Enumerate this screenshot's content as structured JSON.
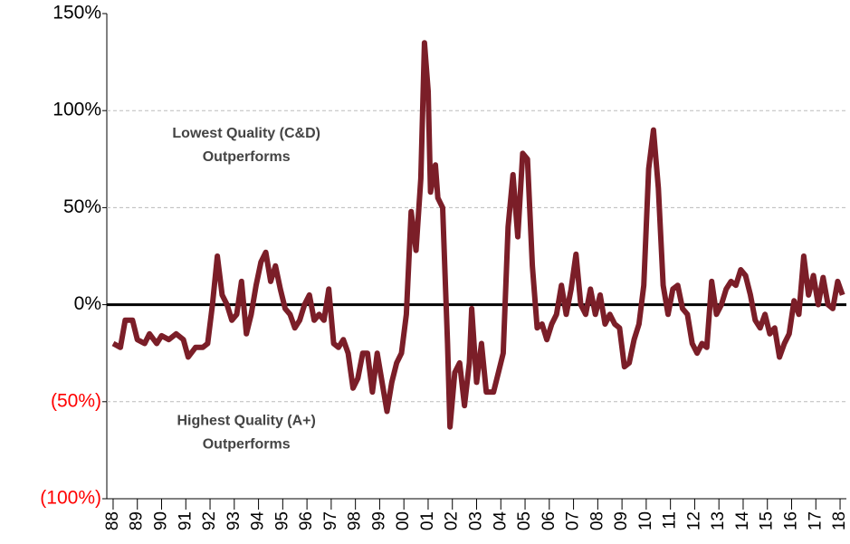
{
  "chart_data": {
    "type": "line",
    "annotations": [
      {
        "text": [
          "Lowest Quality (C&D)",
          "Outperforms"
        ],
        "at": [
          1993.5,
          88
        ]
      },
      {
        "text": [
          "Highest Quality (A+)",
          "Outperforms"
        ],
        "at": [
          1993.5,
          -60
        ]
      }
    ],
    "xlim": [
      1987.74,
      2018.26
    ],
    "xticks": [
      {
        "value": 1988,
        "label": "88"
      },
      {
        "value": 1989,
        "label": "89"
      },
      {
        "value": 1990,
        "label": "90"
      },
      {
        "value": 1991,
        "label": "91"
      },
      {
        "value": 1992,
        "label": "92"
      },
      {
        "value": 1993,
        "label": "93"
      },
      {
        "value": 1994,
        "label": "94"
      },
      {
        "value": 1995,
        "label": "95"
      },
      {
        "value": 1996,
        "label": "96"
      },
      {
        "value": 1997,
        "label": "97"
      },
      {
        "value": 1998,
        "label": "98"
      },
      {
        "value": 1999,
        "label": "99"
      },
      {
        "value": 2000,
        "label": "00"
      },
      {
        "value": 2001,
        "label": "01"
      },
      {
        "value": 2002,
        "label": "02"
      },
      {
        "value": 2003,
        "label": "03"
      },
      {
        "value": 2004,
        "label": "04"
      },
      {
        "value": 2005,
        "label": "05"
      },
      {
        "value": 2006,
        "label": "06"
      },
      {
        "value": 2007,
        "label": "07"
      },
      {
        "value": 2008,
        "label": "08"
      },
      {
        "value": 2009,
        "label": "09"
      },
      {
        "value": 2010,
        "label": "10"
      },
      {
        "value": 2011,
        "label": "11"
      },
      {
        "value": 2012,
        "label": "12"
      },
      {
        "value": 2013,
        "label": "13"
      },
      {
        "value": 2014,
        "label": "14"
      },
      {
        "value": 2015,
        "label": "15"
      },
      {
        "value": 2016,
        "label": "16"
      },
      {
        "value": 2017,
        "label": "17"
      },
      {
        "value": 2018,
        "label": "18"
      }
    ],
    "ylim": [
      -100,
      150
    ],
    "yticks": [
      {
        "value": -100,
        "label": "(100%)"
      },
      {
        "value": -50,
        "label": "(50%)"
      },
      {
        "value": 0,
        "label": "0%"
      },
      {
        "value": 50,
        "label": "50%"
      },
      {
        "value": 100,
        "label": "100%"
      },
      {
        "value": 150,
        "label": "150%"
      }
    ],
    "grid": true,
    "zero_line": true,
    "negative_tick_color": "#ff0000",
    "series": [
      {
        "color": "#7b1e28",
        "x": [
          1988.0,
          1988.3,
          1988.5,
          1988.8,
          1989.0,
          1989.3,
          1989.5,
          1989.8,
          1990.0,
          1990.3,
          1990.6,
          1990.9,
          1991.1,
          1991.4,
          1991.7,
          1991.9,
          1992.1,
          1992.3,
          1992.5,
          1992.7,
          1992.9,
          1993.1,
          1993.3,
          1993.5,
          1993.7,
          1993.9,
          1994.1,
          1994.3,
          1994.5,
          1994.7,
          1994.9,
          1995.1,
          1995.3,
          1995.5,
          1995.7,
          1995.9,
          1996.1,
          1996.3,
          1996.5,
          1996.7,
          1996.9,
          1997.1,
          1997.3,
          1997.5,
          1997.7,
          1997.9,
          1998.1,
          1998.3,
          1998.5,
          1998.7,
          1998.9,
          1999.1,
          1999.3,
          1999.5,
          1999.7,
          1999.9,
          2000.1,
          2000.3,
          2000.5,
          2000.7,
          2000.85,
          2001.0,
          2001.1,
          2001.3,
          2001.4,
          2001.6,
          2001.8,
          2001.9,
          2002.1,
          2002.3,
          2002.5,
          2002.7,
          2002.8,
          2003.0,
          2003.2,
          2003.4,
          2003.7,
          2003.9,
          2004.1,
          2004.3,
          2004.5,
          2004.7,
          2004.9,
          2005.1,
          2005.3,
          2005.5,
          2005.7,
          2005.9,
          2006.1,
          2006.3,
          2006.5,
          2006.7,
          2006.9,
          2007.1,
          2007.3,
          2007.5,
          2007.7,
          2007.9,
          2008.1,
          2008.3,
          2008.5,
          2008.7,
          2008.9,
          2009.1,
          2009.3,
          2009.5,
          2009.7,
          2009.9,
          2010.1,
          2010.3,
          2010.5,
          2010.7,
          2010.9,
          2011.1,
          2011.3,
          2011.5,
          2011.7,
          2011.9,
          2012.1,
          2012.3,
          2012.5,
          2012.7,
          2012.9,
          2013.1,
          2013.3,
          2013.5,
          2013.7,
          2013.9,
          2014.1,
          2014.3,
          2014.5,
          2014.7,
          2014.9,
          2015.1,
          2015.3,
          2015.5,
          2015.7,
          2015.9,
          2016.1,
          2016.3,
          2016.5,
          2016.7,
          2016.9,
          2017.1,
          2017.3,
          2017.5,
          2017.7,
          2017.9,
          2018.1
        ],
        "values": [
          -20,
          -22,
          -8,
          -8,
          -18,
          -20,
          -15,
          -20,
          -16,
          -18,
          -15,
          -18,
          -27,
          -22,
          -22,
          -20,
          0,
          25,
          5,
          0,
          -8,
          -5,
          12,
          -15,
          -5,
          10,
          22,
          27,
          12,
          20,
          8,
          -2,
          -5,
          -12,
          -8,
          0,
          5,
          -8,
          -5,
          -8,
          8,
          -20,
          -22,
          -18,
          -25,
          -43,
          -38,
          -25,
          -25,
          -45,
          -25,
          -40,
          -55,
          -40,
          -30,
          -25,
          -5,
          48,
          28,
          65,
          135,
          110,
          58,
          72,
          55,
          50,
          -20,
          -63,
          -35,
          -30,
          -52,
          -30,
          -2,
          -40,
          -20,
          -45,
          -45,
          -35,
          -25,
          40,
          67,
          35,
          78,
          75,
          20,
          -12,
          -10,
          -18,
          -10,
          -5,
          10,
          -5,
          8,
          26,
          0,
          -5,
          8,
          -5,
          5,
          -10,
          -5,
          -10,
          -12,
          -32,
          -30,
          -18,
          -10,
          10,
          70,
          90,
          60,
          10,
          -5,
          8,
          10,
          -2,
          -5,
          -20,
          -25,
          -20,
          -22,
          12,
          -5,
          0,
          8,
          12,
          10,
          18,
          15,
          5,
          -8,
          -12,
          -5,
          -15,
          -12,
          -27,
          -20,
          -15,
          2,
          -5,
          25,
          5,
          15,
          0,
          14,
          0,
          -2,
          12,
          5
        ]
      }
    ]
  }
}
